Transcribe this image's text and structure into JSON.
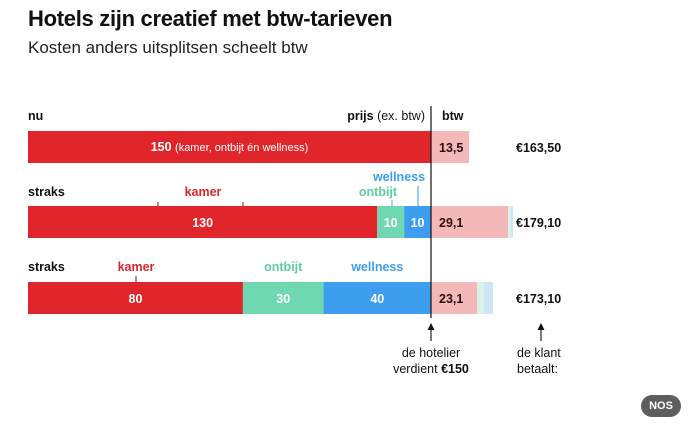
{
  "header": {
    "title": "Hotels zijn creatief met btw-tarieven",
    "subtitle": "Kosten anders uitsplitsen scheelt btw"
  },
  "column_headers": {
    "price": "prijs",
    "price_note": "(ex. btw)",
    "vat": "btw"
  },
  "colors": {
    "kamer": "#e0262b",
    "ontbijt": "#6fd8b0",
    "wellness": "#3d9ef0",
    "btw": "#f4b8b8",
    "extra_ontbijt": "#d9f2e6",
    "extra_wellness": "#cfe4f8",
    "ontbijt_label": "#5ccda1",
    "wellness_label": "#3d9ef0",
    "kamer_label": "#d7262b"
  },
  "chart_data": {
    "type": "bar",
    "orientation": "horizontal",
    "stacked": true,
    "title": "Hotels zijn creatief met btw-tarieven",
    "subtitle": "Kosten anders uitsplitsen scheelt btw",
    "xlim": [
      0,
      150
    ],
    "rows": [
      {
        "label": "nu",
        "segments": [
          {
            "name": "kamer",
            "value": 150,
            "label": "150",
            "detail": "(kamer, ontbijt én wellness)"
          }
        ],
        "btw": "13,5",
        "total": "€163,50"
      },
      {
        "label": "straks",
        "segments": [
          {
            "name": "kamer",
            "value": 130,
            "label": "130",
            "caption": "kamer"
          },
          {
            "name": "ontbijt",
            "value": 10,
            "label": "10",
            "caption": "ontbijt"
          },
          {
            "name": "wellness",
            "value": 10,
            "label": "10",
            "caption": "wellness"
          }
        ],
        "btw": "29,1",
        "total": "€179,10"
      },
      {
        "label": "straks",
        "segments": [
          {
            "name": "kamer",
            "value": 80,
            "label": "80",
            "caption": "kamer"
          },
          {
            "name": "ontbijt",
            "value": 30,
            "label": "30",
            "caption": "ontbijt"
          },
          {
            "name": "wellness",
            "value": 40,
            "label": "40",
            "caption": "wellness"
          }
        ],
        "btw": "23,1",
        "total": "€173,10"
      }
    ],
    "annotations": [
      {
        "line1": "de hotelier",
        "line2a": "verdient ",
        "line2b": "€150"
      },
      {
        "line1": "de klant",
        "line2a": "betaalt:",
        "line2b": ""
      }
    ]
  },
  "badge": "NOS"
}
